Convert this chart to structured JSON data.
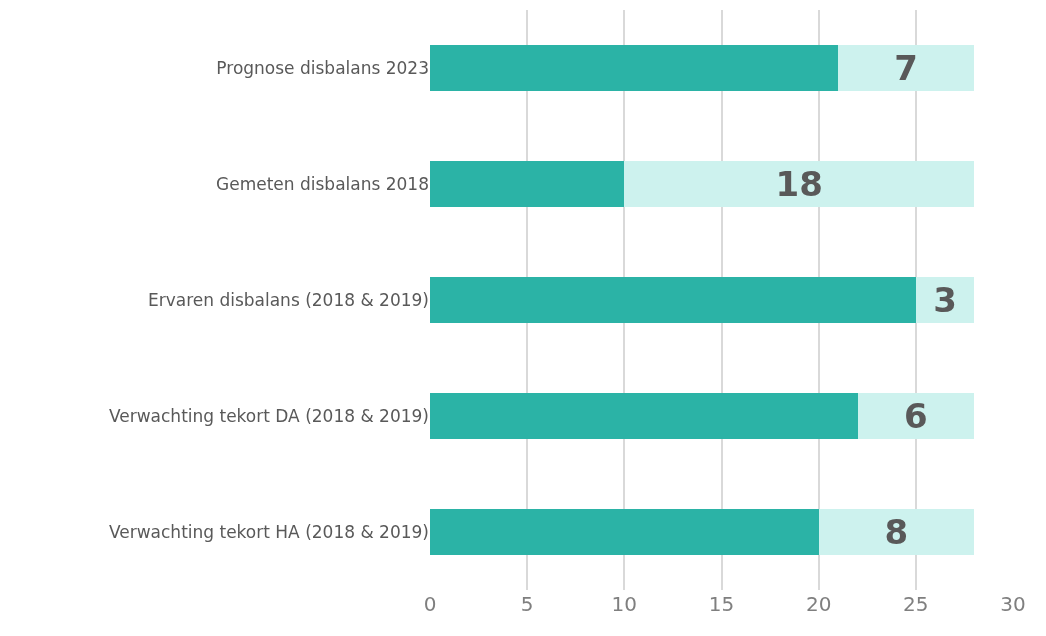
{
  "chart_data": {
    "type": "bar",
    "orientation": "horizontal",
    "stacked": true,
    "categories": [
      "Prognose disbalans 2023",
      "Gemeten disbalans 2018",
      "Ervaren disbalans (2018 & 2019)",
      "Verwachting tekort DA (2018 & 2019)",
      "Verwachting tekort HA (2018 & 2019)"
    ],
    "series": [
      {
        "color": "#2bb3a6",
        "values": [
          21,
          10,
          25,
          22,
          20
        ]
      },
      {
        "color": "#cdf2ee",
        "values": [
          7,
          18,
          3,
          6,
          8
        ],
        "value_labels": [
          "7",
          "18",
          "3",
          "6",
          "8"
        ]
      }
    ],
    "xlim": [
      0,
      30
    ],
    "xticks": [
      0,
      5,
      10,
      15,
      20,
      25,
      30
    ],
    "grid": "x"
  }
}
